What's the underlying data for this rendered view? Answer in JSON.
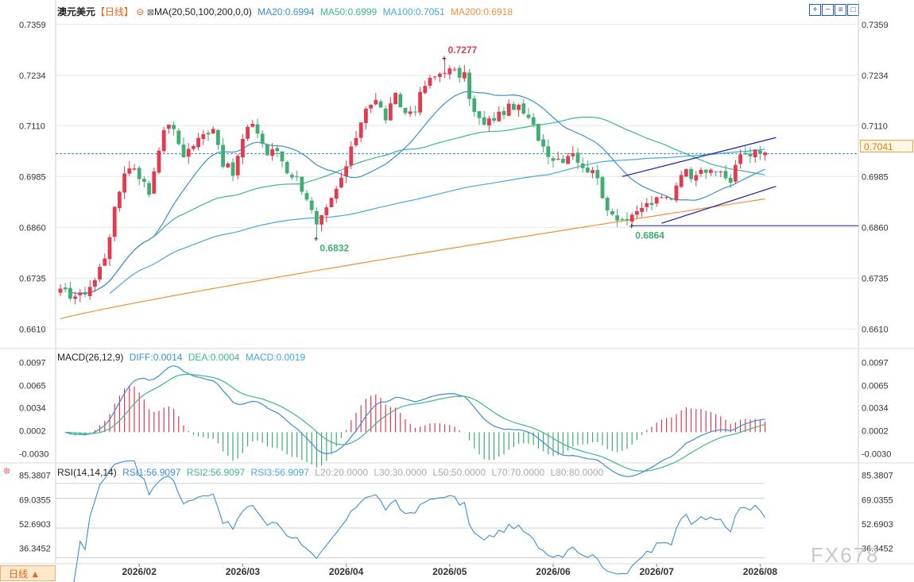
{
  "header": {
    "symbol": "澳元美元",
    "period": "【日线】",
    "ma_label": "MA(20,50,100,200,0,0)",
    "ma20": "MA20:0.6994",
    "ma50": "MA50:0.6999",
    "ma100": "MA100:0.7051",
    "ma200": "MA200:0.6918"
  },
  "toolbar": {
    "zoom_in_icon": "+",
    "zoom_out_icon": "−",
    "settings_icon": "≡",
    "fullscreen_icon": "□"
  },
  "macd_header": {
    "label": "MACD(26,12,9)",
    "diff": "DIFF:0.0014",
    "dea": "DEA:0.0004",
    "macd": "MACD:0.0019"
  },
  "rsi_header": {
    "label": "RSI(14,14,14)",
    "rsi1": "RSI1:56.9097",
    "rsi2": "RSI2:56.9097",
    "rsi3": "RSI3:56.9097",
    "l20": "L20:20.0000",
    "l30": "L30:30.0000",
    "l50": "L50:50.0000",
    "l70": "L70:70.0000",
    "l80": "L80:80.0000"
  },
  "timeframe_button": "日线 ▲",
  "watermark": "FX678",
  "current_price": "0.7041",
  "colors": {
    "up": "#e23a4e",
    "down": "#3fae72",
    "ma20": "#3b8fd6",
    "ma50": "#3cb88c",
    "ma100": "#44a8e0",
    "ma200": "#f0903c",
    "trend": "#1a1aa8",
    "grid": "#e6e6e6",
    "axis_text": "#333333",
    "price_line": "#2f8fb0"
  },
  "chart_data": [
    {
      "type": "candlestick",
      "title": "澳元美元【日线】",
      "y_ticks": [
        "0.7359",
        "0.7234",
        "0.7110",
        "0.6985",
        "0.6860",
        "0.6735",
        "0.6610"
      ],
      "ylim": [
        0.656,
        0.738
      ],
      "x_ticks": [
        "2026/02",
        "2026/03",
        "2026/04",
        "2026/05",
        "2026/06",
        "2026/07",
        "2026/08"
      ],
      "x_tick_bar_index": [
        16,
        37,
        58,
        79,
        100,
        121,
        142
      ],
      "annotations": [
        {
          "text": "0.7277",
          "bar_index": 78,
          "value": 0.7277
        },
        {
          "text": "0.6832",
          "bar_index": 52,
          "value": 0.6832
        },
        {
          "text": "0.6864",
          "bar_index": 116,
          "value": 0.6864
        }
      ],
      "horizontal_lines": [
        {
          "value": 0.7041
        },
        {
          "value": 0.6864
        }
      ],
      "channel_lines": [
        {
          "from": {
            "bar": 114,
            "value": 0.6985
          },
          "to": {
            "bar": 142,
            "value": 0.7071
          }
        },
        {
          "from": {
            "bar": 122,
            "value": 0.687
          },
          "to": {
            "bar": 142,
            "value": 0.6951
          }
        }
      ],
      "anchors": [
        [
          0,
          0.67
        ],
        [
          4,
          0.669
        ],
        [
          7,
          0.673
        ],
        [
          9,
          0.679
        ],
        [
          11,
          0.69
        ],
        [
          13,
          0.7
        ],
        [
          15,
          0.701
        ],
        [
          18,
          0.6945
        ],
        [
          20,
          0.706
        ],
        [
          22,
          0.712
        ],
        [
          25,
          0.704
        ],
        [
          28,
          0.7075
        ],
        [
          31,
          0.711
        ],
        [
          33,
          0.702
        ],
        [
          35,
          0.699
        ],
        [
          37,
          0.7075
        ],
        [
          39,
          0.712
        ],
        [
          42,
          0.704
        ],
        [
          44,
          0.705
        ],
        [
          46,
          0.7
        ],
        [
          48,
          0.698
        ],
        [
          50,
          0.6935
        ],
        [
          52,
          0.686
        ],
        [
          54,
          0.69
        ],
        [
          56,
          0.695
        ],
        [
          58,
          0.701
        ],
        [
          60,
          0.7085
        ],
        [
          62,
          0.716
        ],
        [
          64,
          0.717
        ],
        [
          66,
          0.713
        ],
        [
          68,
          0.718
        ],
        [
          70,
          0.714
        ],
        [
          72,
          0.7155
        ],
        [
          74,
          0.721
        ],
        [
          76,
          0.723
        ],
        [
          78,
          0.725
        ],
        [
          80,
          0.724
        ],
        [
          82,
          0.723
        ],
        [
          84,
          0.714
        ],
        [
          86,
          0.711
        ],
        [
          88,
          0.713
        ],
        [
          90,
          0.7145
        ],
        [
          92,
          0.716
        ],
        [
          94,
          0.714
        ],
        [
          96,
          0.7105
        ],
        [
          98,
          0.706
        ],
        [
          100,
          0.703
        ],
        [
          102,
          0.703
        ],
        [
          104,
          0.705
        ],
        [
          106,
          0.7
        ],
        [
          108,
          0.701
        ],
        [
          110,
          0.693
        ],
        [
          112,
          0.6895
        ],
        [
          114,
          0.688
        ],
        [
          116,
          0.688
        ],
        [
          118,
          0.691
        ],
        [
          120,
          0.692
        ],
        [
          122,
          0.693
        ],
        [
          124,
          0.6935
        ],
        [
          126,
          0.7
        ],
        [
          128,
          0.699
        ],
        [
          130,
          0.701
        ],
        [
          132,
          0.699
        ],
        [
          134,
          0.7
        ],
        [
          136,
          0.697
        ],
        [
          138,
          0.704
        ],
        [
          140,
          0.7045
        ],
        [
          142,
          0.7041
        ]
      ],
      "moving_averages": [
        {
          "name": "MA20",
          "value": 0.6994
        },
        {
          "name": "MA50",
          "value": 0.6999
        },
        {
          "name": "MA100",
          "value": 0.7051
        },
        {
          "name": "MA200",
          "value": 0.6918
        }
      ]
    },
    {
      "type": "macd",
      "title": "MACD(26,12,9)",
      "y_ticks": [
        "0.0097",
        "0.0065",
        "0.0034",
        "0.0002",
        "-0.0030"
      ],
      "ylim": [
        -0.0045,
        0.011
      ],
      "series": [
        {
          "name": "DIFF",
          "value": 0.0014
        },
        {
          "name": "DEA",
          "value": 0.0004
        },
        {
          "name": "MACD",
          "value": 0.0019
        }
      ]
    },
    {
      "type": "rsi",
      "title": "RSI(14,14,14)",
      "y_ticks": [
        "85.3807",
        "69.0355",
        "52.6903",
        "36.3452"
      ],
      "ylim": [
        26.0,
        90.0
      ],
      "levels": [
        20,
        30,
        50,
        70,
        80
      ],
      "series": [
        {
          "name": "RSI1",
          "value": 56.9097
        },
        {
          "name": "RSI2",
          "value": 56.9097
        },
        {
          "name": "RSI3",
          "value": 56.9097
        }
      ]
    }
  ]
}
